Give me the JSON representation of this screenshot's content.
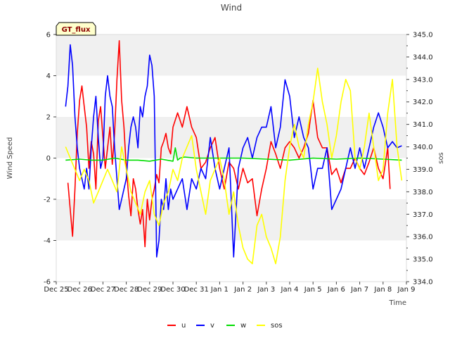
{
  "chart_data": {
    "type": "line",
    "title": "Wind",
    "xlabel": "Time",
    "ylabel": "Wind Speed",
    "y2label": "sos",
    "badge": "GT_flux",
    "xlim": [
      0,
      15
    ],
    "ylim": [
      -6,
      6
    ],
    "y2lim": [
      334,
      345
    ],
    "x_ticks": [
      {
        "x": 0,
        "label": "Dec 25"
      },
      {
        "x": 1,
        "label": "Dec 26"
      },
      {
        "x": 2,
        "label": "Dec 27"
      },
      {
        "x": 3,
        "label": "Dec 28"
      },
      {
        "x": 4,
        "label": "Dec 29"
      },
      {
        "x": 5,
        "label": "Dec 30"
      },
      {
        "x": 6,
        "label": "Dec 31"
      },
      {
        "x": 7,
        "label": "Jan 1"
      },
      {
        "x": 8,
        "label": "Jan 2"
      },
      {
        "x": 9,
        "label": "Jan 3"
      },
      {
        "x": 10,
        "label": "Jan 4"
      },
      {
        "x": 11,
        "label": "Jan 5"
      },
      {
        "x": 12,
        "label": "Jan 6"
      },
      {
        "x": 13,
        "label": "Jan 7"
      },
      {
        "x": 14,
        "label": "Jan 8"
      },
      {
        "x": 15,
        "label": "Jan 9"
      }
    ],
    "y_ticks": [
      -6,
      -4,
      -2,
      0,
      2,
      4,
      6
    ],
    "y2_ticks": [
      334,
      335,
      336,
      337,
      338,
      339,
      340,
      341,
      342,
      343,
      344,
      345
    ],
    "grid_bands": true,
    "legend_position": "bottom-center",
    "series": [
      {
        "name": "u",
        "axis": "left",
        "color": "#ff0000",
        "x": [
          0.5,
          0.6,
          0.7,
          0.8,
          0.9,
          1.0,
          1.1,
          1.2,
          1.3,
          1.4,
          1.5,
          1.6,
          1.7,
          1.8,
          1.9,
          2.0,
          2.1,
          2.2,
          2.3,
          2.4,
          2.5,
          2.6,
          2.7,
          2.8,
          2.9,
          3.0,
          3.1,
          3.2,
          3.3,
          3.4,
          3.5,
          3.6,
          3.7,
          3.8,
          3.9,
          4.0,
          4.1,
          4.2,
          4.3,
          4.4,
          4.5,
          4.6,
          4.7,
          4.8,
          4.9,
          5.0,
          5.2,
          5.4,
          5.6,
          5.8,
          6.0,
          6.2,
          6.4,
          6.6,
          6.8,
          7.0,
          7.2,
          7.4,
          7.6,
          7.8,
          8.0,
          8.2,
          8.4,
          8.6,
          8.8,
          9.0,
          9.2,
          9.4,
          9.6,
          9.8,
          10.0,
          10.2,
          10.4,
          10.6,
          10.8,
          11.0,
          11.2,
          11.4,
          11.6,
          11.8,
          12.0,
          12.2,
          12.4,
          12.6,
          12.8,
          13.0,
          13.2,
          13.4,
          13.6,
          13.8,
          14.0,
          14.2,
          14.3
        ],
        "values": [
          -1.2,
          -2.5,
          -3.8,
          -1.5,
          1.2,
          2.8,
          3.5,
          2.5,
          1.5,
          -0.5,
          0.8,
          0.2,
          -1.5,
          1.8,
          2.5,
          1.0,
          -0.5,
          0.5,
          1.5,
          -0.3,
          1.2,
          3.8,
          5.7,
          2.8,
          1.5,
          -0.5,
          -1.8,
          -2.8,
          -1.0,
          -1.5,
          -2.5,
          -3.2,
          -2.5,
          -4.3,
          -2.0,
          -3.0,
          -2.0,
          -1.5,
          -0.8,
          -1.2,
          0.5,
          0.8,
          1.2,
          0.5,
          0.2,
          1.5,
          2.2,
          1.5,
          2.5,
          1.5,
          1.0,
          -0.5,
          -0.2,
          0.5,
          1.0,
          -0.5,
          -1.5,
          -0.2,
          -0.5,
          -1.5,
          -0.5,
          -1.2,
          -1.0,
          -2.8,
          -1.5,
          -0.5,
          0.8,
          0.2,
          -0.5,
          0.5,
          0.8,
          0.5,
          0.0,
          0.5,
          1.2,
          2.8,
          1.0,
          0.5,
          0.5,
          -0.8,
          -0.5,
          -1.2,
          -0.5,
          -0.5,
          0.0,
          -0.5,
          -0.8,
          -0.2,
          0.5,
          -0.5,
          -1.0,
          0.5,
          -1.5
        ]
      },
      {
        "name": "v",
        "axis": "left",
        "color": "#0000ff",
        "x": [
          0.4,
          0.5,
          0.6,
          0.7,
          0.8,
          0.9,
          1.0,
          1.1,
          1.2,
          1.3,
          1.4,
          1.5,
          1.6,
          1.7,
          1.8,
          1.9,
          2.0,
          2.1,
          2.2,
          2.3,
          2.4,
          2.5,
          2.6,
          2.7,
          2.8,
          2.9,
          3.0,
          3.1,
          3.2,
          3.3,
          3.4,
          3.5,
          3.6,
          3.7,
          3.8,
          3.9,
          4.0,
          4.1,
          4.2,
          4.3,
          4.4,
          4.5,
          4.6,
          4.7,
          4.8,
          4.9,
          5.0,
          5.2,
          5.4,
          5.6,
          5.8,
          6.0,
          6.2,
          6.4,
          6.6,
          6.8,
          7.0,
          7.2,
          7.4,
          7.6,
          7.8,
          8.0,
          8.2,
          8.4,
          8.6,
          8.8,
          9.0,
          9.2,
          9.4,
          9.6,
          9.8,
          10.0,
          10.2,
          10.4,
          10.6,
          10.8,
          11.0,
          11.2,
          11.4,
          11.6,
          11.8,
          12.0,
          12.2,
          12.4,
          12.6,
          12.8,
          13.0,
          13.2,
          13.4,
          13.6,
          13.8,
          14.0,
          14.2,
          14.4,
          14.6,
          14.8
        ],
        "values": [
          2.5,
          3.5,
          5.5,
          4.5,
          2.0,
          0.5,
          -0.5,
          -1.0,
          -1.5,
          -0.5,
          -1.5,
          0.5,
          2.0,
          3.0,
          1.0,
          -0.5,
          0.0,
          3.0,
          4.0,
          3.0,
          2.5,
          0.5,
          -1.0,
          -2.5,
          -2.0,
          -1.5,
          -1.0,
          0.5,
          1.5,
          2.0,
          1.5,
          0.5,
          2.5,
          2.0,
          3.0,
          3.5,
          5.0,
          4.5,
          3.0,
          -4.8,
          -4.0,
          -2.0,
          -2.5,
          -1.0,
          -2.5,
          -1.5,
          -2.0,
          -1.5,
          -1.0,
          -2.5,
          -1.0,
          -1.5,
          -0.5,
          -1.0,
          1.0,
          -0.5,
          -1.5,
          -0.5,
          0.5,
          -4.8,
          -0.5,
          0.5,
          1.0,
          0.0,
          1.0,
          1.5,
          1.5,
          2.5,
          0.5,
          1.5,
          3.8,
          3.0,
          1.0,
          2.0,
          1.0,
          0.5,
          -1.5,
          -0.5,
          -0.5,
          0.5,
          -2.5,
          -2.0,
          -1.5,
          -0.5,
          0.5,
          -0.5,
          0.5,
          -0.5,
          0.5,
          1.5,
          2.2,
          1.5,
          0.5,
          0.8,
          0.5,
          0.6
        ]
      },
      {
        "name": "w",
        "axis": "left",
        "color": "#00dd00",
        "x": [
          0.4,
          1.0,
          1.5,
          2.0,
          2.5,
          3.0,
          3.5,
          4.0,
          4.5,
          5.0,
          5.1,
          5.2,
          5.3,
          5.5,
          6.0,
          7.0,
          8.0,
          9.0,
          10.0,
          11.0,
          12.0,
          13.0,
          14.0,
          14.8
        ],
        "values": [
          -0.1,
          -0.05,
          -0.1,
          -0.1,
          0.0,
          -0.1,
          -0.1,
          -0.15,
          -0.05,
          -0.15,
          0.5,
          -0.1,
          0.0,
          0.05,
          0.0,
          0.0,
          0.0,
          -0.05,
          -0.1,
          0.0,
          -0.05,
          0.0,
          -0.05,
          -0.1
        ]
      },
      {
        "name": "sos",
        "axis": "right",
        "color": "#ffff00",
        "x": [
          0.4,
          0.6,
          0.8,
          1.0,
          1.2,
          1.4,
          1.6,
          1.8,
          2.0,
          2.2,
          2.4,
          2.6,
          2.8,
          3.0,
          3.2,
          3.4,
          3.6,
          3.8,
          4.0,
          4.2,
          4.4,
          4.6,
          4.8,
          5.0,
          5.2,
          5.4,
          5.6,
          5.8,
          6.0,
          6.2,
          6.4,
          6.6,
          6.8,
          7.0,
          7.2,
          7.4,
          7.6,
          7.8,
          8.0,
          8.2,
          8.4,
          8.6,
          8.8,
          9.0,
          9.2,
          9.4,
          9.6,
          9.8,
          10.0,
          10.2,
          10.4,
          10.6,
          10.8,
          11.0,
          11.2,
          11.4,
          11.6,
          11.8,
          12.0,
          12.2,
          12.4,
          12.6,
          12.8,
          13.0,
          13.2,
          13.4,
          13.6,
          13.8,
          14.0,
          14.2,
          14.4,
          14.6,
          14.8
        ],
        "values": [
          340.0,
          339.5,
          339.0,
          338.5,
          339.0,
          338.5,
          337.5,
          338.0,
          338.5,
          339.0,
          338.5,
          338.0,
          340.0,
          339.0,
          338.0,
          337.5,
          337.0,
          338.0,
          338.5,
          337.0,
          336.5,
          337.5,
          338.0,
          339.0,
          338.5,
          339.5,
          340.0,
          340.5,
          339.0,
          338.0,
          337.0,
          338.5,
          339.0,
          339.5,
          338.5,
          337.0,
          338.0,
          336.5,
          335.5,
          335.0,
          334.8,
          336.5,
          337.0,
          336.0,
          335.5,
          334.8,
          336.0,
          338.5,
          340.0,
          341.0,
          340.0,
          339.5,
          341.0,
          342.0,
          343.5,
          342.0,
          341.0,
          339.5,
          340.5,
          342.0,
          343.0,
          342.5,
          339.5,
          339.0,
          340.0,
          341.5,
          340.0,
          338.5,
          339.0,
          341.5,
          343.0,
          340.0,
          338.5
        ]
      }
    ]
  }
}
